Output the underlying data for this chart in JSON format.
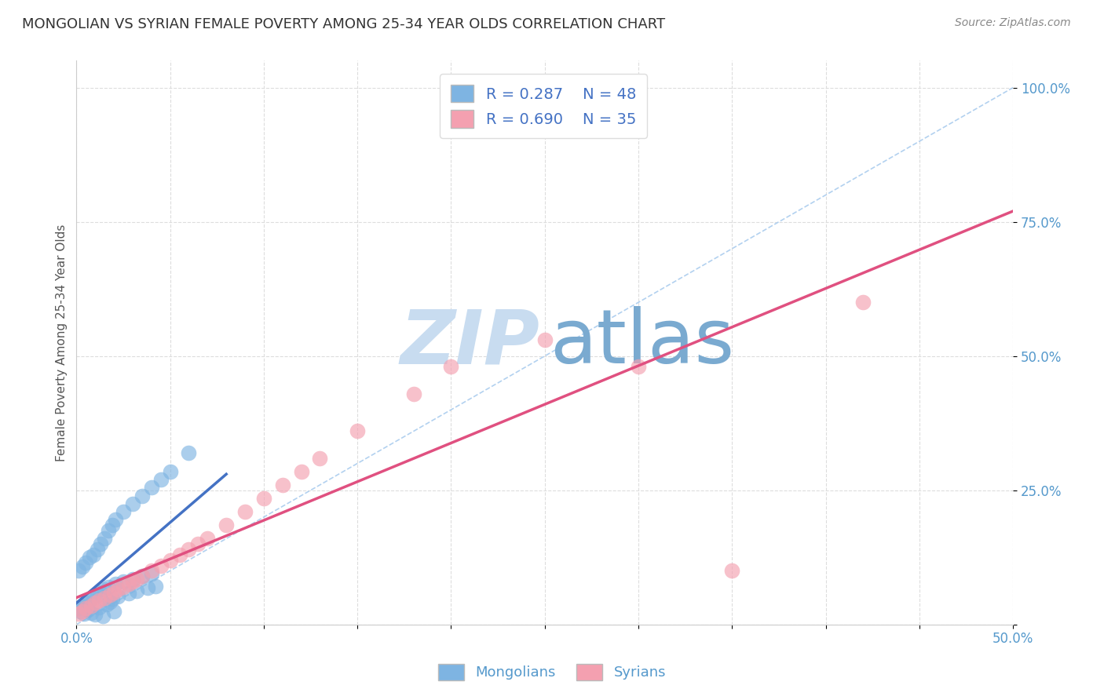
{
  "title": "MONGOLIAN VS SYRIAN FEMALE POVERTY AMONG 25-34 YEAR OLDS CORRELATION CHART",
  "source": "Source: ZipAtlas.com",
  "ylabel": "Female Poverty Among 25-34 Year Olds",
  "xlim": [
    0.0,
    0.5
  ],
  "ylim": [
    0.0,
    1.05
  ],
  "xtick_values": [
    0.0,
    0.05,
    0.1,
    0.15,
    0.2,
    0.25,
    0.3,
    0.35,
    0.4,
    0.45,
    0.5
  ],
  "xtick_labels_visible": [
    "0.0%",
    "",
    "",
    "",
    "",
    "",
    "",
    "",
    "",
    "",
    "50.0%"
  ],
  "ytick_values": [
    0.0,
    0.25,
    0.5,
    0.75,
    1.0
  ],
  "ytick_labels": [
    "",
    "25.0%",
    "50.0%",
    "75.0%",
    "100.0%"
  ],
  "mongolian_R": 0.287,
  "mongolian_N": 48,
  "syrian_R": 0.69,
  "syrian_N": 35,
  "mongolian_color": "#7EB4E2",
  "syrian_color": "#F4A0B0",
  "mongolian_line_color": "#4472C4",
  "syrian_line_color": "#E05080",
  "ref_line_color": "#AACCEE",
  "watermark_color_zip": "#C8DCF0",
  "watermark_color_atlas": "#7AAAD0",
  "background_color": "#FFFFFF",
  "title_color": "#333333",
  "title_fontsize": 13,
  "axis_label_color": "#555555",
  "tick_color": "#5599CC",
  "grid_color": "#DDDDDD",
  "mongolian_x": [
    0.001,
    0.002,
    0.003,
    0.004,
    0.005,
    0.006,
    0.007,
    0.008,
    0.009,
    0.01,
    0.011,
    0.012,
    0.013,
    0.014,
    0.015,
    0.016,
    0.017,
    0.018,
    0.019,
    0.02,
    0.021,
    0.022,
    0.025,
    0.028,
    0.03,
    0.032,
    0.035,
    0.038,
    0.04,
    0.042,
    0.001,
    0.003,
    0.005,
    0.007,
    0.009,
    0.011,
    0.013,
    0.015,
    0.017,
    0.019,
    0.021,
    0.025,
    0.03,
    0.035,
    0.04,
    0.045,
    0.05,
    0.06
  ],
  "mongolian_y": [
    0.03,
    0.025,
    0.035,
    0.02,
    0.04,
    0.028,
    0.045,
    0.022,
    0.05,
    0.018,
    0.055,
    0.032,
    0.06,
    0.015,
    0.065,
    0.038,
    0.07,
    0.042,
    0.048,
    0.025,
    0.075,
    0.052,
    0.08,
    0.058,
    0.085,
    0.062,
    0.09,
    0.068,
    0.095,
    0.072,
    0.1,
    0.108,
    0.115,
    0.125,
    0.13,
    0.14,
    0.15,
    0.16,
    0.175,
    0.185,
    0.195,
    0.21,
    0.225,
    0.24,
    0.255,
    0.27,
    0.285,
    0.32
  ],
  "syrian_x": [
    0.001,
    0.003,
    0.005,
    0.008,
    0.01,
    0.012,
    0.015,
    0.018,
    0.02,
    0.022,
    0.025,
    0.028,
    0.03,
    0.032,
    0.035,
    0.04,
    0.045,
    0.05,
    0.055,
    0.06,
    0.065,
    0.07,
    0.08,
    0.09,
    0.1,
    0.11,
    0.12,
    0.13,
    0.15,
    0.18,
    0.2,
    0.25,
    0.3,
    0.35,
    0.42
  ],
  "syrian_y": [
    0.02,
    0.025,
    0.03,
    0.035,
    0.04,
    0.045,
    0.05,
    0.055,
    0.06,
    0.065,
    0.07,
    0.075,
    0.08,
    0.085,
    0.09,
    0.1,
    0.11,
    0.12,
    0.13,
    0.14,
    0.15,
    0.16,
    0.185,
    0.21,
    0.235,
    0.26,
    0.285,
    0.31,
    0.36,
    0.43,
    0.48,
    0.53,
    0.48,
    0.1,
    0.6
  ],
  "mongolian_line_x": [
    0.0,
    0.08
  ],
  "mongolian_line_y": [
    0.04,
    0.28
  ],
  "syrian_line_x": [
    0.0,
    0.5
  ],
  "syrian_line_y": [
    0.05,
    0.77
  ]
}
